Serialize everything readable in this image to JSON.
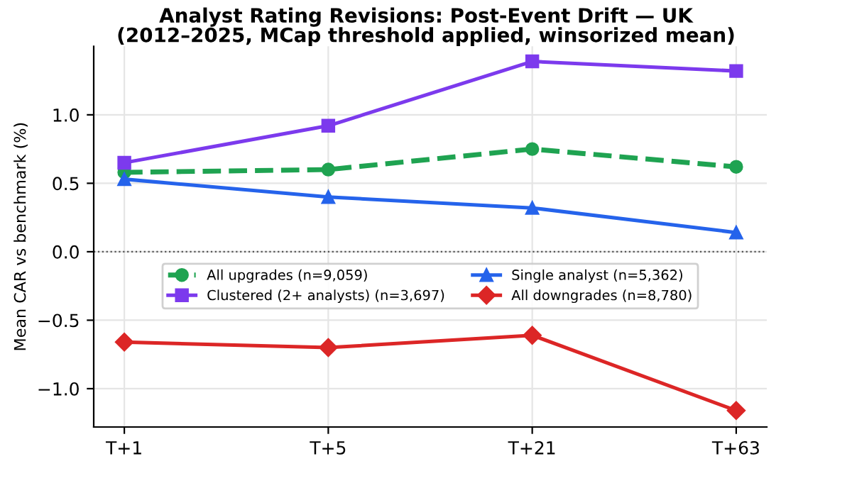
{
  "chart_data": {
    "type": "line",
    "title": "Analyst Rating Revisions: Post-Event Drift — UK",
    "subtitle": "(2012–2025, MCap threshold applied, winsorized mean)",
    "ylabel": "Mean CAR vs benchmark (%)",
    "categories": [
      "T+1",
      "T+5",
      "T+21",
      "T+63"
    ],
    "series": [
      {
        "name": "All upgrades (n=9,059)",
        "color": "#1fa351",
        "values": [
          0.58,
          0.6,
          0.75,
          0.62
        ],
        "marker": "circle",
        "line_style": "dashed"
      },
      {
        "name": "Clustered (2+ analysts) (n=3,697)",
        "color": "#7c3aed",
        "values": [
          0.65,
          0.92,
          1.39,
          1.32
        ],
        "marker": "square",
        "line_style": "solid"
      },
      {
        "name": "Single analyst (n=5,362)",
        "color": "#2563eb",
        "values": [
          0.53,
          0.4,
          0.32,
          0.14
        ],
        "marker": "triangle",
        "line_style": "solid"
      },
      {
        "name": "All downgrades (n=8,780)",
        "color": "#dc2626",
        "values": [
          -0.66,
          -0.7,
          -0.61,
          -1.16
        ],
        "marker": "diamond",
        "line_style": "solid"
      }
    ],
    "ylim": [
      -1.28,
      1.5
    ],
    "yticks": [
      {
        "value": -1.0,
        "label": "−1.0"
      },
      {
        "value": -0.5,
        "label": "−0.5"
      },
      {
        "value": 0.0,
        "label": "0.0"
      },
      {
        "value": 0.5,
        "label": "0.5"
      },
      {
        "value": 1.0,
        "label": "1.0"
      }
    ],
    "ref_lines": [
      {
        "axis": "y",
        "value": 0,
        "label": null,
        "color": "#555555",
        "line_style": "dotted"
      }
    ],
    "grid": true,
    "legend": "center"
  }
}
